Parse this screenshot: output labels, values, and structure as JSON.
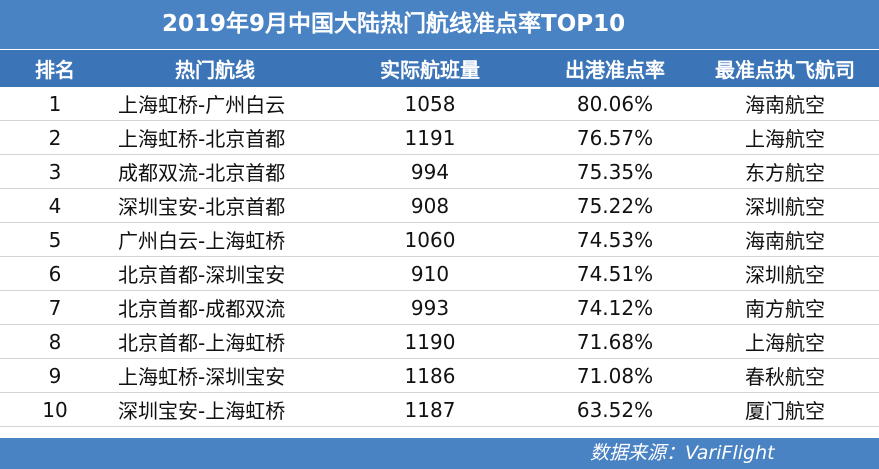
{
  "title": "2019年9月中国大陆热门航线准点率TOP10",
  "headers": [
    "排名",
    "热门航线",
    "实际航班量",
    "出港准点率",
    "最准点执飞航司"
  ],
  "rows": [
    {
      "rank": "1",
      "route": "上海虹桥-广州白云",
      "flights": "1058",
      "rate": "80.06%",
      "airline": "海南航空"
    },
    {
      "rank": "2",
      "route": "上海虹桥-北京首都",
      "flights": "1191",
      "rate": "76.57%",
      "airline": "上海航空"
    },
    {
      "rank": "3",
      "route": "成都双流-北京首都",
      "flights": "994",
      "rate": "75.35%",
      "airline": "东方航空"
    },
    {
      "rank": "4",
      "route": "深圳宝安-北京首都",
      "flights": "908",
      "rate": "75.22%",
      "airline": "深圳航空"
    },
    {
      "rank": "5",
      "route": "广州白云-上海虹桥",
      "flights": "1060",
      "rate": "74.53%",
      "airline": "海南航空"
    },
    {
      "rank": "6",
      "route": "北京首都-深圳宝安",
      "flights": "910",
      "rate": "74.51%",
      "airline": "深圳航空"
    },
    {
      "rank": "7",
      "route": "北京首都-成都双流",
      "flights": "993",
      "rate": "74.12%",
      "airline": "南方航空"
    },
    {
      "rank": "8",
      "route": "北京首都-上海虹桥",
      "flights": "1190",
      "rate": "71.68%",
      "airline": "上海航空"
    },
    {
      "rank": "9",
      "route": "上海虹桥-深圳宝安",
      "flights": "1186",
      "rate": "71.08%",
      "airline": "春秋航空"
    },
    {
      "rank": "10",
      "route": "深圳宝安-上海虹桥",
      "flights": "1187",
      "rate": "63.52%",
      "airline": "厦门航空"
    }
  ],
  "source": "数据来源：VariFlight"
}
